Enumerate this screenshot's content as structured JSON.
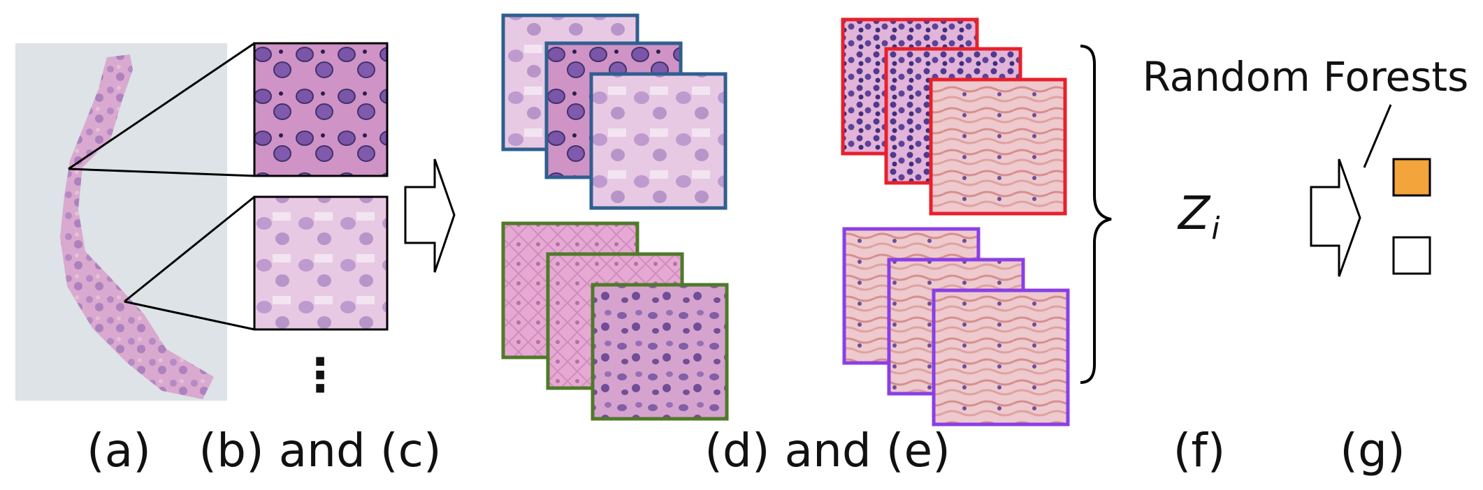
{
  "panel_labels": {
    "a": "(a)",
    "bc": "(b) and (c)",
    "de": "(d) and (e)",
    "f": "(f)",
    "g": "(g)"
  },
  "classifier_label": "Random Forests",
  "feature_symbol": {
    "base": "Z",
    "subscript": "i"
  },
  "ellipsis": "⋮",
  "colors": {
    "stack_blue": "#2f5f8f",
    "stack_green": "#4f7a28",
    "stack_red": "#e8202a",
    "stack_purple": "#8a3fe6",
    "output_orange": "#f3a43a",
    "tissue_pink": "#d9a9cf",
    "slide_gray": "#dde3e6"
  },
  "icons": {
    "arrow_1": "hollow-right-arrow-icon",
    "arrow_2": "hollow-right-arrow-icon",
    "brace": "right-curly-brace-icon"
  }
}
